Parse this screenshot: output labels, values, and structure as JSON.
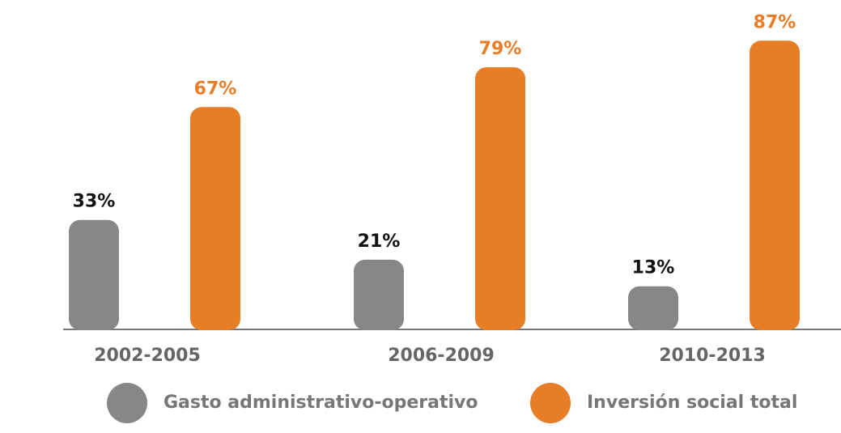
{
  "chart_data": {
    "type": "bar",
    "categories": [
      "2002-2005",
      "2006-2009",
      "2010-2013"
    ],
    "series": [
      {
        "name": "Gasto administrativo-operativo",
        "color": "#878787",
        "values": [
          33,
          21,
          13
        ],
        "value_labels": [
          "33%",
          "21%",
          "13%"
        ]
      },
      {
        "name": "Inversión social total",
        "color": "#e87d27",
        "values": [
          67,
          79,
          87
        ],
        "value_labels": [
          "67%",
          "79%",
          "87%"
        ]
      }
    ]
  }
}
